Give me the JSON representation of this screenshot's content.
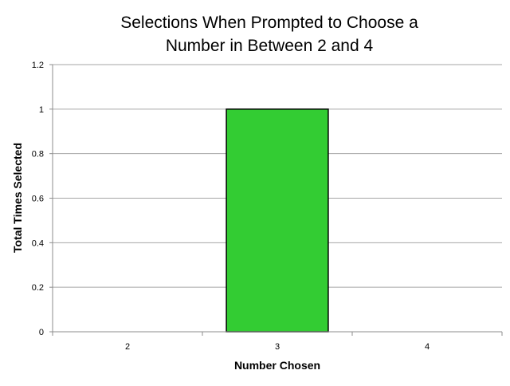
{
  "chart_data": {
    "type": "bar",
    "title_lines": [
      "Selections When Prompted to Choose a",
      "Number in Between 2 and 4"
    ],
    "xlabel": "Number Chosen",
    "ylabel": "Total Times Selected",
    "categories": [
      "2",
      "3",
      "4"
    ],
    "values": [
      0,
      1,
      0
    ],
    "ylim": [
      0,
      1.2
    ],
    "yticks": [
      "0",
      "0.2",
      "0.4",
      "0.6",
      "0.8",
      "1",
      "1.2"
    ],
    "grid": true,
    "legend": "none",
    "colors": {
      "bar_fill": "#33cc33",
      "bar_stroke": "#000000",
      "gridline": "#a6a6a6",
      "axis": "#8c8c8c",
      "text": "#000000"
    }
  }
}
